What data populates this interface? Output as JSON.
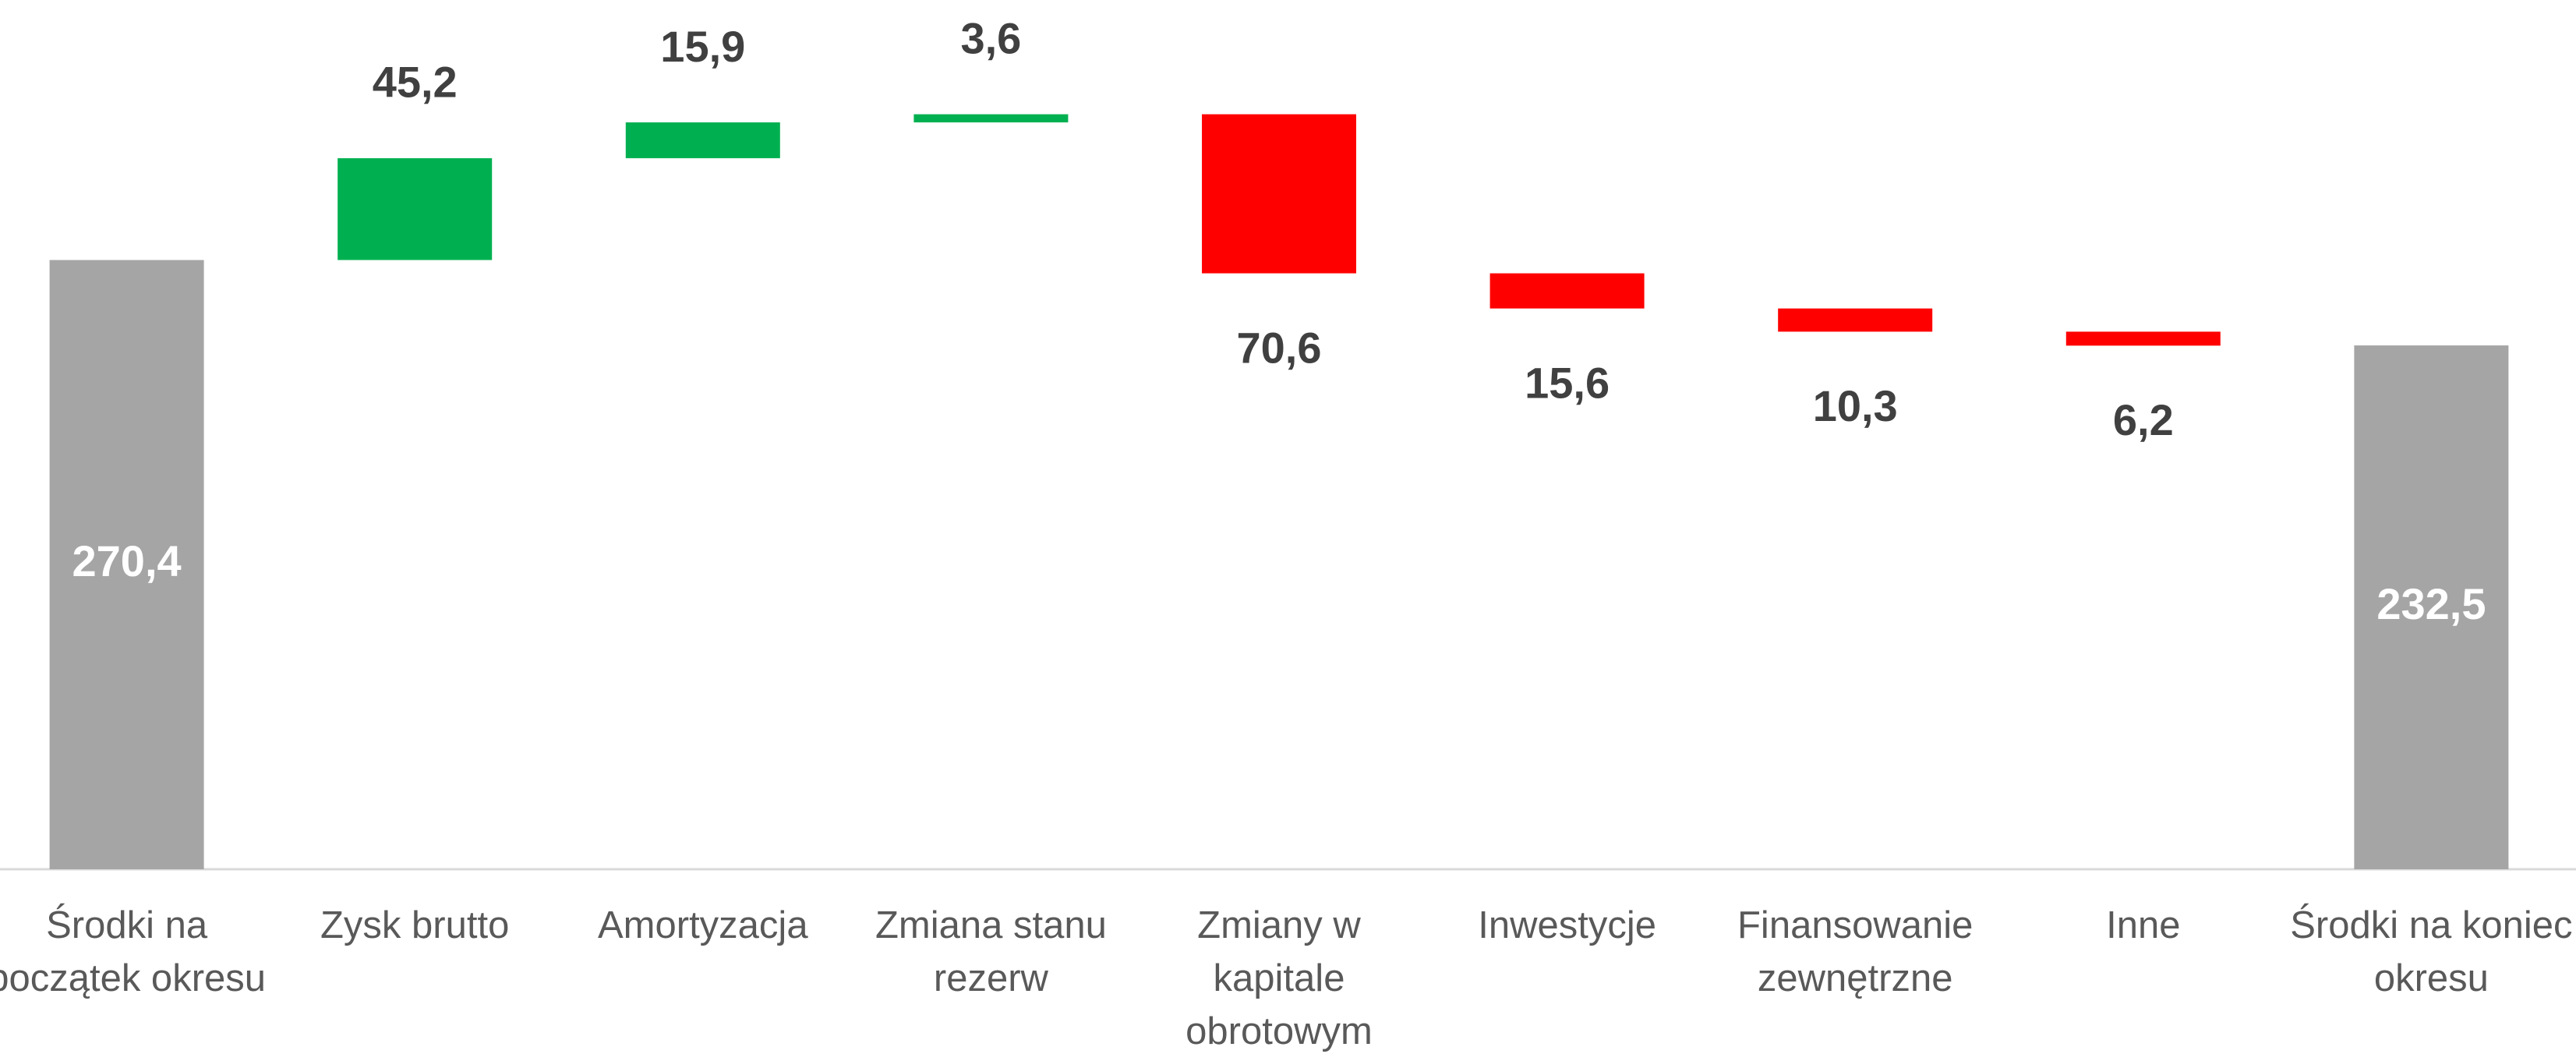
{
  "chart_data": {
    "type": "waterfall",
    "categories": [
      "Środki na początek okresu",
      "Zysk brutto",
      "Amortyzacja",
      "Zmiana stanu rezerw",
      "Zmiany w kapitale obrotowym",
      "Inwestycje",
      "Finansowanie zewnętrzne",
      "Inne",
      "Środki na koniec okresu"
    ],
    "measures": [
      "total",
      "increase",
      "increase",
      "increase",
      "decrease",
      "decrease",
      "decrease",
      "decrease",
      "total"
    ],
    "values": [
      270.4,
      45.2,
      15.9,
      3.6,
      70.6,
      15.6,
      10.3,
      6.2,
      232.5
    ],
    "value_labels": [
      "270,4",
      "45,2",
      "15,9",
      "3,6",
      "70,6",
      "15,6",
      "10,3",
      "6,2",
      "232,5"
    ],
    "colors": {
      "total": "#a5a5a5",
      "increase": "#00b050",
      "decrease": "#ff0000"
    }
  }
}
